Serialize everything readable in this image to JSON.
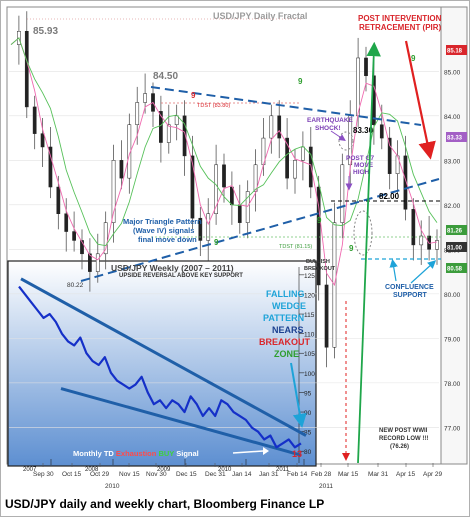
{
  "caption": "USD/JPY daily and weekly chart, Bloomberg Finance LP",
  "chart_data": [
    {
      "type": "line",
      "title": "USD/JPY Daily Fractal",
      "x_tick_labels": [
        "Sep 30",
        "Oct 15",
        "Oct 29",
        "Nov 15",
        "Nov 30",
        "Dec 15",
        "Dec 31",
        "Jan 14",
        "Jan 31",
        "Feb 14",
        "Feb 28",
        "Mar 15",
        "Mar 31",
        "Apr 15",
        "Apr 29"
      ],
      "year_labels": [
        "2010",
        "2011"
      ],
      "y_tick_labels": [
        "85.00",
        "84.00",
        "83.00",
        "82.00",
        "81.00",
        "80.00",
        "79.00",
        "78.00",
        "77.00"
      ],
      "ylim": [
        76.2,
        86.4
      ],
      "series": [
        {
          "values": [
            85.6,
            85.9,
            84.2,
            83.6,
            83.3,
            82.4,
            81.8,
            81.4,
            81.2,
            80.9,
            80.5,
            80.9,
            81.6,
            83.0,
            82.6,
            83.8,
            84.3,
            84.5,
            84.1,
            83.4,
            83.8,
            84.0,
            83.1,
            81.7,
            81.2,
            81.8,
            82.9,
            82.4,
            82.0,
            81.6,
            82.3,
            82.9,
            83.5,
            84.0,
            83.5,
            82.6,
            83.0,
            83.3,
            82.4,
            80.2,
            78.8,
            81.6,
            82.9,
            84.0,
            85.3,
            84.9,
            83.8,
            83.5,
            82.7,
            83.1,
            81.9,
            81.1,
            81.3,
            81.0,
            81.2
          ]
        }
      ],
      "price_boxes": [
        {
          "value": "85.18",
          "color": "#d9262c"
        },
        {
          "value": "83.33",
          "color": "#a35fc5"
        },
        {
          "value": "81.26",
          "color": "#3c9c3c"
        },
        {
          "value": "81.00",
          "color": "#333333"
        },
        {
          "value": "80.58",
          "color": "#3c9c3c"
        }
      ],
      "annotations": [
        {
          "text": "85.93",
          "color": "#7a7a7a"
        },
        {
          "text": "84.50",
          "color": "#7a7a7a"
        },
        {
          "text": "80.22",
          "color": "#333333"
        },
        {
          "text": "TDST (83.80)",
          "color": "#d9262c"
        },
        {
          "text": "TDST (81.15)",
          "color": "#3c9c3c"
        },
        {
          "text": "83.30",
          "color": "#000000"
        },
        {
          "text": "82.00",
          "color": "#000000"
        },
        {
          "text": "POST INTERVENTION",
          "color": "#d9262c"
        },
        {
          "text": "RETRACEMENT (PIR)",
          "color": "#d9262c"
        },
        {
          "text": "EARTHQUAKE",
          "color": "#7b3fb4"
        },
        {
          "text": "SHOCK!",
          "color": "#7b3fb4"
        },
        {
          "text": "POST G7",
          "color": "#7b3fb4"
        },
        {
          "text": "MOVE",
          "color": "#7b3fb4"
        },
        {
          "text": "HIGH",
          "color": "#7b3fb4"
        },
        {
          "text": "Major Triangle Pattern",
          "color": "#1f5fa8"
        },
        {
          "text": "(Wave IV) signals",
          "color": "#1f5fa8"
        },
        {
          "text": "final move down",
          "color": "#1f5fa8"
        },
        {
          "text": "UPSIDE REVERSAL ABOVE  KEY SUPPORT",
          "color": "#333333"
        },
        {
          "text": "BULLISH",
          "color": "#333333"
        },
        {
          "text": "BREAKOUT",
          "color": "#333333"
        },
        {
          "text": "CONFLUENCE",
          "color": "#1f5fa8"
        },
        {
          "text": "SUPPORT",
          "color": "#1f5fa8"
        },
        {
          "text": "NEW POST WWII",
          "color": "#333333"
        },
        {
          "text": "RECORD LOW !!!",
          "color": "#333333"
        },
        {
          "text": "(76.26)",
          "color": "#333333"
        }
      ],
      "td_counts": [
        "9",
        "9",
        "9",
        "9",
        "9",
        "9"
      ]
    },
    {
      "type": "line",
      "title": "USD/JPY Weekly (2007 – 2011)",
      "x_tick_labels": [
        "2007",
        "2008",
        "2009",
        "2010",
        "2011"
      ],
      "y_tick_labels": [
        "125",
        "120",
        "115",
        "110",
        "105",
        "100",
        "95",
        "90",
        "85",
        "80"
      ],
      "ylim": [
        77,
        127
      ],
      "series": [
        {
          "values": [
            122,
            120,
            118,
            116,
            114,
            115,
            113,
            110,
            108,
            107,
            109,
            105,
            103,
            102,
            104,
            100,
            98,
            97,
            96,
            97,
            99,
            95,
            92,
            93,
            91,
            93,
            92,
            90,
            94,
            92,
            89,
            91,
            89,
            93,
            92,
            90,
            89,
            88,
            86,
            85,
            83,
            84,
            81,
            82,
            83,
            81,
            82
          ]
        }
      ],
      "annotations": [
        {
          "text": "FALLING",
          "color": "#1ea3d8"
        },
        {
          "text": "WEDGE",
          "color": "#1ea3d8"
        },
        {
          "text": "PATTERN",
          "color": "#1ea3d8"
        },
        {
          "text": "NEARS",
          "color": "#1b3f8f"
        },
        {
          "text": "BREAKOUT",
          "color": "#d9262c"
        },
        {
          "text": "ZONE",
          "color": "#2e9e2e"
        },
        {
          "text": "13",
          "color": "#d9262c"
        }
      ],
      "signal_text": [
        {
          "text": "Monthly TD ",
          "color": "#ffffff"
        },
        {
          "text": "Exhaustion ",
          "color": "#ff4a4a"
        },
        {
          "text": "BUY ",
          "color": "#3fd13f"
        },
        {
          "text": "Signal",
          "color": "#ffffff"
        }
      ]
    }
  ]
}
